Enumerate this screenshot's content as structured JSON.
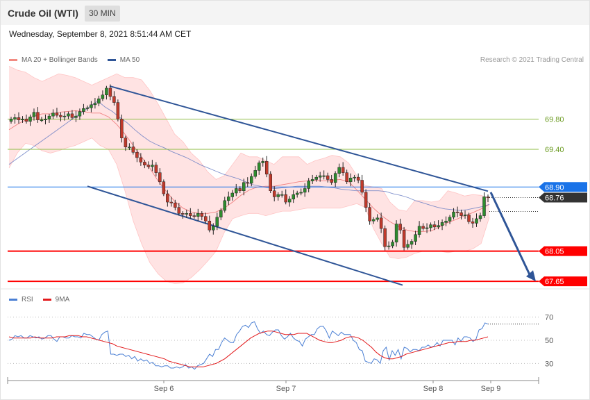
{
  "header": {
    "instrument": "Crude Oil (WTI)",
    "timeframe": "30 MIN",
    "datetime": "Wednesday, September 8, 2021 8:51:44 AM CET",
    "credit": "Research © 2021 Trading Central"
  },
  "legend_main": [
    {
      "label": "MA 20 + Bollinger Bands",
      "color": "#f28b82"
    },
    {
      "label": "MA 50",
      "color": "#2f5597"
    }
  ],
  "legend_rsi": [
    {
      "label": "RSI",
      "color": "#4a7fd4"
    },
    {
      "label": "9MA",
      "color": "#e31a1c"
    }
  ],
  "chart_data": {
    "type": "candlestick",
    "ylim": [
      67.55,
      70.55
    ],
    "x_labels": [
      "Sep 6",
      "Sep 7",
      "Sep 8",
      "Sep 9"
    ],
    "candles_close": [
      69.8,
      69.82,
      69.79,
      69.8,
      69.77,
      69.83,
      69.89,
      69.79,
      69.79,
      69.8,
      69.84,
      69.88,
      69.85,
      69.83,
      69.84,
      69.87,
      69.82,
      69.84,
      69.9,
      69.94,
      69.95,
      69.99,
      70.01,
      70.07,
      70.12,
      70.21,
      70.1,
      70.02,
      69.8,
      69.55,
      69.43,
      69.43,
      69.36,
      69.29,
      69.23,
      69.19,
      69.17,
      69.19,
      69.09,
      68.97,
      68.81,
      68.7,
      68.69,
      68.63,
      68.55,
      68.54,
      68.55,
      68.52,
      68.51,
      68.55,
      68.51,
      68.45,
      68.33,
      68.38,
      68.5,
      68.59,
      68.72,
      68.77,
      68.82,
      68.88,
      68.85,
      68.96,
      68.95,
      69.04,
      69.12,
      69.22,
      69.24,
      69.07,
      68.85,
      68.77,
      68.8,
      68.8,
      68.7,
      68.74,
      68.8,
      68.82,
      68.83,
      68.88,
      68.98,
      69,
      69.03,
      69.05,
      69.05,
      69,
      68.96,
      69.08,
      69.16,
      69.09,
      68.97,
      69.02,
      69.03,
      68.99,
      68.83,
      68.63,
      68.45,
      68.47,
      68.49,
      68.35,
      68.11,
      68.12,
      68.17,
      68.41,
      68.33,
      68.1,
      68.14,
      68.18,
      68.27,
      68.38,
      68.35,
      68.36,
      68.4,
      68.37,
      68.39,
      68.43,
      68.45,
      68.5,
      68.57,
      68.56,
      68.52,
      68.53,
      68.44,
      68.42,
      68.48,
      68.52,
      68.77,
      68.76
    ],
    "ma50": [
      69.2,
      69.27,
      69.34,
      69.41,
      69.48,
      69.55,
      69.62,
      69.69,
      69.76,
      69.83,
      69.9,
      69.97,
      70.04,
      69.96,
      69.9,
      69.82,
      69.75,
      69.66,
      69.58,
      69.51,
      69.46,
      69.42,
      69.37,
      69.33,
      69.29,
      69.24,
      69.19,
      69.15,
      69.11,
      69.07,
      69.04,
      69.01,
      68.97,
      68.93,
      68.91,
      68.89,
      68.88,
      68.89,
      68.9,
      68.91,
      68.91,
      68.91,
      68.91,
      68.9,
      68.89,
      68.87,
      68.86,
      68.85,
      68.85,
      68.85,
      68.85,
      68.84,
      68.81,
      68.79,
      68.76,
      68.72,
      68.69,
      68.66,
      68.63,
      68.61,
      68.6,
      68.59,
      68.6,
      68.62,
      68.64,
      68.67
    ],
    "ma20": [
      69.66,
      69.73,
      69.79,
      69.84,
      69.87,
      69.87,
      69.89,
      69.9,
      69.91,
      69.9,
      69.88,
      69.88,
      69.83,
      69.73,
      69.6,
      69.45,
      69.3,
      69.15,
      68.98,
      68.84,
      68.71,
      68.62,
      68.57,
      68.55,
      68.55,
      68.57,
      68.62,
      68.7,
      68.79,
      68.86,
      68.9,
      68.91,
      68.91,
      68.93,
      68.95,
      68.97,
      68.98,
      68.99,
      68.98,
      68.99,
      69.0,
      68.97,
      68.86,
      68.74,
      68.62,
      68.52,
      68.44,
      68.38,
      68.33,
      68.31,
      68.31,
      68.32,
      68.37,
      68.43,
      68.47,
      68.52,
      68.56,
      68.61,
      68.67
    ],
    "bollinger_upper": [
      70.5,
      70.45,
      70.42,
      70.35,
      70.3,
      70.35,
      70.4,
      70.38,
      70.35,
      70.3,
      70.25,
      70.3,
      70.35,
      70.4,
      70.35,
      70.35,
      70.32,
      70.18,
      70.0,
      69.8,
      69.6,
      69.5,
      69.35,
      69.25,
      69.1,
      69.0,
      69.05,
      69.2,
      69.35,
      69.3,
      69.3,
      69.25,
      69.2,
      69.3,
      69.3,
      69.3,
      69.2,
      69.25,
      69.28,
      69.32,
      69.3,
      69.22,
      69.05,
      68.92,
      68.9,
      68.88,
      68.7,
      68.6,
      68.58,
      68.72,
      68.72,
      68.7,
      68.72,
      68.85,
      68.82,
      68.78,
      68.8,
      68.79,
      68.75
    ],
    "bollinger_lower": [
      69.15,
      69.35,
      69.48,
      69.45,
      69.38,
      69.35,
      69.38,
      69.42,
      69.45,
      69.5,
      69.55,
      69.45,
      69.4,
      69.2,
      68.85,
      68.45,
      68.15,
      67.9,
      67.75,
      67.65,
      67.62,
      67.63,
      67.7,
      67.8,
      67.92,
      68.05,
      68.3,
      68.48,
      68.52,
      68.55,
      68.55,
      68.52,
      68.55,
      68.58,
      68.58,
      68.6,
      68.62,
      68.62,
      68.62,
      68.62,
      68.62,
      68.65,
      68.68,
      68.63,
      68.35,
      68.15,
      67.97,
      67.95,
      67.97,
      68.02,
      68.05,
      68.05,
      68.05,
      68.03,
      68.05,
      68.05,
      68.08,
      68.15,
      68.5
    ],
    "levels": [
      {
        "value": "69.80",
        "color": "#8fbc45"
      },
      {
        "value": "69.40",
        "color": "#8fbc45"
      },
      {
        "value": "68.90",
        "color": "#1a73e8"
      },
      {
        "value": "68.76",
        "color": "#333333"
      },
      {
        "value": "68.05",
        "color": "#ff0000"
      },
      {
        "value": "67.65",
        "color": "#ff0000"
      }
    ],
    "rsi": {
      "ylim": [
        20,
        80
      ],
      "ticks": [
        "70",
        "50",
        "30"
      ],
      "rsi_values": [
        50,
        51,
        54,
        53,
        54,
        52,
        52,
        54,
        53,
        52,
        53,
        51,
        52,
        54,
        54,
        51,
        49,
        53,
        53,
        52,
        52,
        54,
        53,
        53,
        52,
        56,
        55,
        55,
        53,
        51,
        50,
        55,
        57,
        58,
        38,
        38,
        37,
        38,
        38,
        36,
        37,
        34,
        36,
        32,
        34,
        32,
        33,
        30,
        31,
        28,
        28,
        27,
        28,
        28,
        26,
        26,
        27,
        26,
        27,
        29,
        26,
        27,
        25,
        28,
        29,
        30,
        34,
        38,
        36,
        42,
        42,
        48,
        52,
        50,
        48,
        48,
        55,
        58,
        62,
        63,
        61,
        65,
        66,
        60,
        56,
        58,
        55,
        54,
        57,
        59,
        59,
        54,
        51,
        53,
        56,
        52,
        50,
        49,
        45,
        51,
        53,
        55,
        55,
        60,
        62,
        62,
        58,
        52,
        58,
        56,
        54,
        57,
        55,
        55,
        55,
        50,
        48,
        42,
        41,
        32,
        31,
        30,
        34,
        33,
        30,
        41,
        44,
        33,
        41,
        37,
        42,
        34,
        44,
        43,
        40,
        42,
        42,
        41,
        44,
        44,
        46,
        44,
        45,
        48,
        45,
        50,
        50,
        50,
        50,
        46,
        52,
        49,
        53,
        53,
        52,
        49,
        51,
        59,
        60,
        65,
        64
      ],
      "ma9_values": [
        53,
        52,
        52,
        52,
        52,
        52,
        53,
        52,
        52,
        52,
        52,
        53,
        53,
        53,
        54,
        54,
        54,
        53,
        53,
        52,
        51,
        50,
        49,
        48,
        47,
        45,
        44,
        43,
        42,
        41,
        40,
        39,
        38,
        37,
        36,
        35,
        34,
        32,
        31,
        30,
        29,
        28,
        27,
        27,
        27,
        27,
        28,
        29,
        30,
        32,
        34,
        37,
        40,
        43,
        46,
        49,
        52,
        54,
        56,
        57,
        58,
        58,
        57,
        56,
        55,
        55,
        55,
        56,
        56,
        56,
        54,
        52,
        50,
        49,
        48,
        48,
        49,
        50,
        52,
        53,
        53,
        52,
        50,
        47,
        44,
        40,
        37,
        35,
        34,
        34,
        35,
        36,
        38,
        39,
        40,
        41,
        42,
        43,
        44,
        45,
        46,
        47,
        48,
        48,
        49,
        49,
        49,
        50,
        50,
        51,
        52,
        53
      ]
    }
  }
}
